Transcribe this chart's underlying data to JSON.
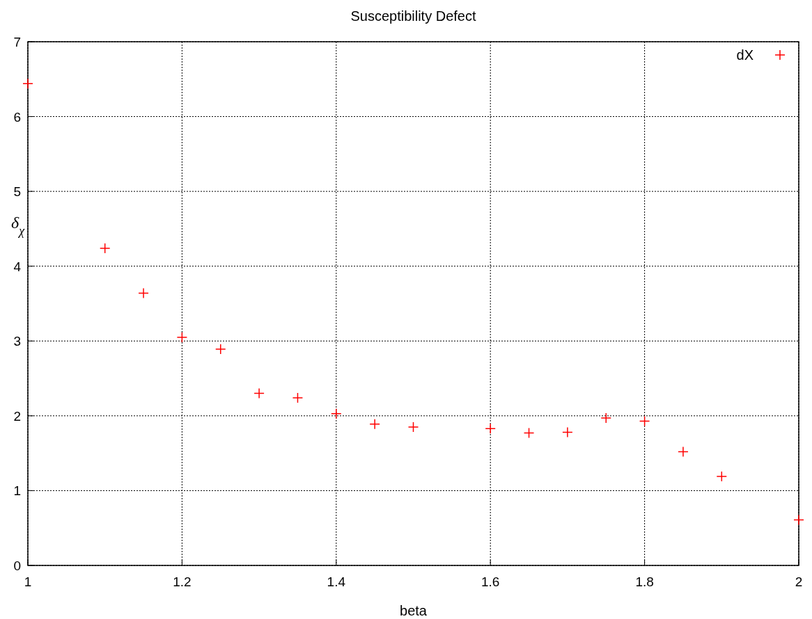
{
  "chart_data": {
    "type": "scatter",
    "title": "Susceptibility Defect",
    "xlabel": "beta",
    "ylabel": "δ$_{χ}$",
    "x": [
      1,
      1.1,
      1.15,
      1.2,
      1.25,
      1.3,
      1.35,
      1.4,
      1.45,
      1.5,
      1.6,
      1.65,
      1.7,
      1.75,
      1.8,
      1.85,
      1.9,
      2
    ],
    "series": [
      {
        "name": "dX",
        "color": "#ff0000",
        "values": [
          6.44,
          4.24,
          3.64,
          3.05,
          2.89,
          2.3,
          2.24,
          2.03,
          1.89,
          1.85,
          1.83,
          1.77,
          1.78,
          1.97,
          1.93,
          1.52,
          1.19,
          0.61
        ]
      }
    ],
    "xlim": [
      1,
      2
    ],
    "xticks": [
      1,
      1.2,
      1.4,
      1.6,
      1.8,
      2
    ],
    "ylim": [
      0,
      7
    ],
    "yticks": [
      0,
      1,
      2,
      3,
      4,
      5,
      6,
      7
    ],
    "grid": true,
    "legend": "top right",
    "marker": "cross"
  }
}
